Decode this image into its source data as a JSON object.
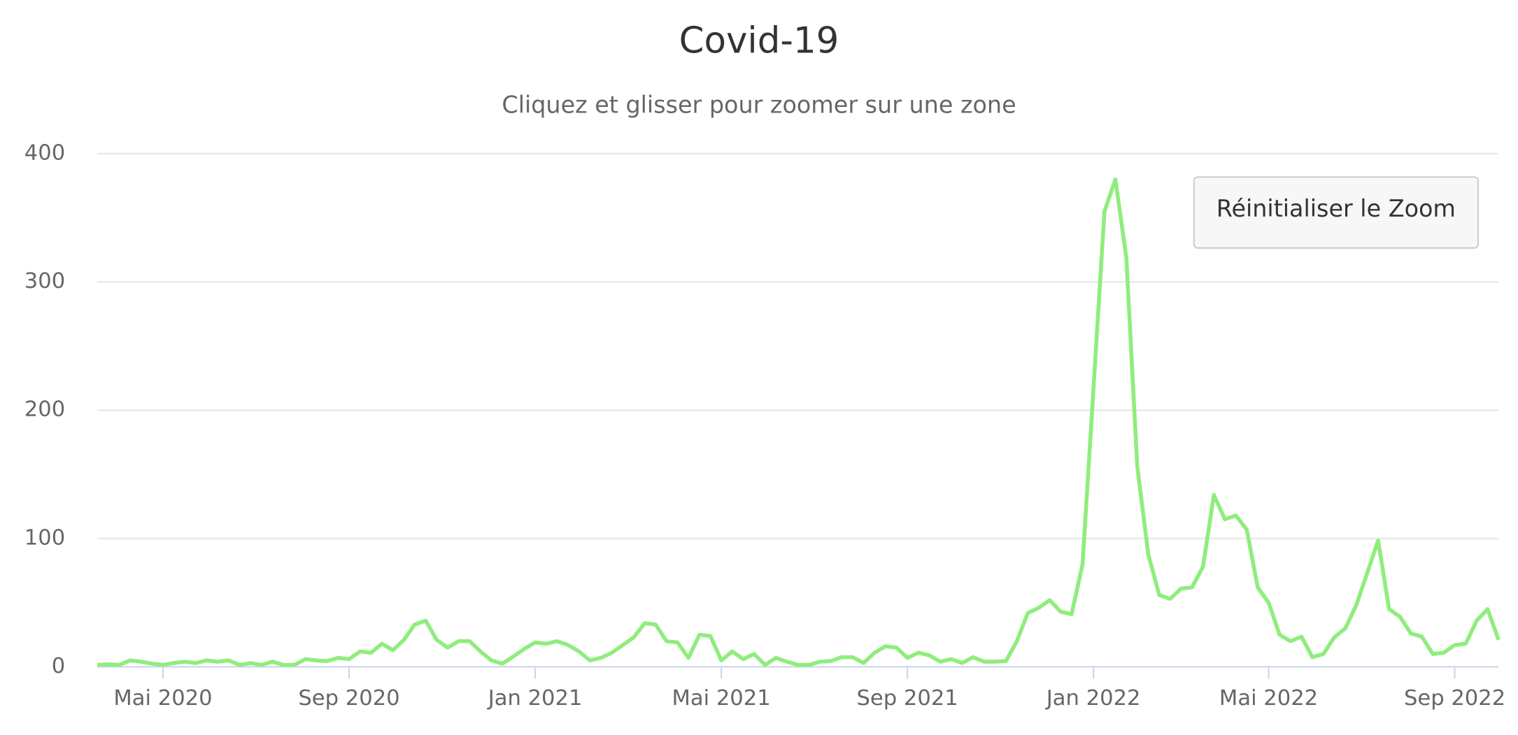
{
  "chart_data": {
    "type": "line",
    "title": "Covid-19",
    "subtitle": "Cliquez et glisser pour zoomer sur une zone",
    "button": "Réinitialiser le Zoom",
    "categories": [
      null,
      null,
      null,
      null,
      null,
      null,
      "Mai 2020",
      null,
      null,
      null,
      null,
      null,
      null,
      null,
      null,
      null,
      null,
      null,
      null,
      null,
      null,
      null,
      null,
      "Sep 2020",
      null,
      null,
      null,
      null,
      null,
      null,
      null,
      null,
      null,
      null,
      null,
      null,
      null,
      null,
      null,
      null,
      "Jan 2021",
      null,
      null,
      null,
      null,
      null,
      null,
      null,
      null,
      null,
      null,
      null,
      null,
      null,
      null,
      null,
      null,
      "Mai 2021",
      null,
      null,
      null,
      null,
      null,
      null,
      null,
      null,
      null,
      null,
      null,
      null,
      null,
      null,
      null,
      null,
      "Sep 2021",
      null,
      null,
      null,
      null,
      null,
      null,
      null,
      null,
      null,
      null,
      null,
      null,
      null,
      null,
      null,
      null,
      "Jan 2022",
      null,
      null,
      null,
      null,
      null,
      null,
      null,
      null,
      null,
      null,
      null,
      null,
      null,
      null,
      null,
      "Mai 2022",
      null,
      null,
      null,
      null,
      null,
      null,
      null,
      null,
      null,
      null,
      null,
      null,
      null,
      null,
      null,
      null,
      "Sep 2022",
      null,
      null,
      null,
      null
    ],
    "series": [
      {
        "name": "Covid-19",
        "color": "#90ed7d",
        "values": [
          1.5,
          2,
          1.5,
          5,
          4,
          2.5,
          1.5,
          3,
          4,
          3,
          5,
          4,
          5,
          1.5,
          3,
          1.5,
          4,
          1.5,
          1.5,
          6,
          5,
          4.5,
          7,
          6,
          12,
          11,
          18,
          13,
          21,
          33,
          36,
          21,
          15,
          20,
          20,
          12,
          5,
          2.5,
          8,
          14,
          19,
          18,
          20,
          17,
          12,
          5,
          7,
          11,
          17,
          23,
          34,
          33,
          20,
          19,
          7,
          25,
          24,
          5,
          12,
          6,
          10,
          1.5,
          7,
          4,
          1.5,
          1.5,
          4,
          4.5,
          7.5,
          7.5,
          3,
          11,
          16,
          15,
          7,
          11,
          9,
          4,
          6,
          3,
          7.5,
          4,
          4,
          4.5,
          20,
          42,
          46,
          52,
          43,
          41,
          80,
          217,
          355,
          380,
          319,
          156,
          88,
          56,
          53,
          61,
          62,
          78,
          134,
          115,
          118,
          107,
          62,
          50,
          25,
          20,
          23.5,
          7.5,
          10,
          23,
          30,
          48,
          73,
          98.5,
          45,
          39,
          26,
          23.5,
          10,
          11,
          17,
          18,
          36,
          45,
          21
        ]
      }
    ],
    "ylim": [
      0,
      400
    ],
    "yticks": [
      0,
      100,
      200,
      300,
      400
    ],
    "grid": true
  }
}
